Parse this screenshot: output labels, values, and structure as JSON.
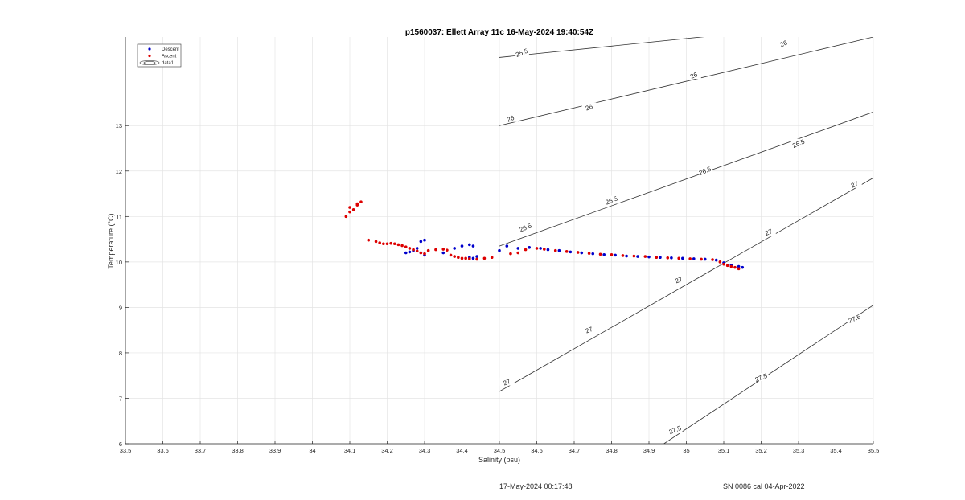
{
  "chart_data": {
    "type": "scatter",
    "title": "p1560037: Ellett Array 11c 16-May-2024 19:40:54Z",
    "xlabel": "Salinity (psu)",
    "ylabel": "Temperature (°C)",
    "xlim": [
      33.5,
      35.5
    ],
    "ylim": [
      6,
      14.95
    ],
    "xticks": [
      "33.5",
      "33.6",
      "33.7",
      "33.8",
      "33.9",
      "34",
      "34.1",
      "34.2",
      "34.3",
      "34.4",
      "34.5",
      "34.6",
      "34.7",
      "34.8",
      "34.9",
      "35",
      "35.1",
      "35.2",
      "35.3",
      "35.4",
      "35.5"
    ],
    "yticks": [
      "6",
      "7",
      "8",
      "9",
      "10",
      "11",
      "12",
      "13"
    ],
    "grid": true,
    "legend_position": "top-left",
    "series": [
      {
        "name": "Descent",
        "color": "#0000cc",
        "points": [
          [
            34.25,
            10.2
          ],
          [
            34.26,
            10.22
          ],
          [
            34.27,
            10.25
          ],
          [
            34.28,
            10.3
          ],
          [
            34.29,
            10.45
          ],
          [
            34.3,
            10.48
          ],
          [
            34.29,
            10.2
          ],
          [
            34.3,
            10.15
          ],
          [
            34.35,
            10.2
          ],
          [
            34.38,
            10.3
          ],
          [
            34.4,
            10.35
          ],
          [
            34.42,
            10.38
          ],
          [
            34.43,
            10.35
          ],
          [
            34.42,
            10.1
          ],
          [
            34.43,
            10.08
          ],
          [
            34.44,
            10.12
          ],
          [
            34.5,
            10.25
          ],
          [
            34.52,
            10.35
          ],
          [
            34.55,
            10.3
          ],
          [
            34.58,
            10.32
          ],
          [
            34.61,
            10.3
          ],
          [
            34.63,
            10.27
          ],
          [
            34.66,
            10.25
          ],
          [
            34.69,
            10.22
          ],
          [
            34.72,
            10.2
          ],
          [
            34.75,
            10.18
          ],
          [
            34.78,
            10.16
          ],
          [
            34.81,
            10.15
          ],
          [
            34.84,
            10.13
          ],
          [
            34.87,
            10.12
          ],
          [
            34.9,
            10.11
          ],
          [
            34.93,
            10.1
          ],
          [
            34.96,
            10.09
          ],
          [
            34.99,
            10.08
          ],
          [
            35.02,
            10.07
          ],
          [
            35.05,
            10.06
          ],
          [
            35.08,
            10.04
          ],
          [
            35.1,
            9.98
          ],
          [
            35.12,
            9.93
          ],
          [
            35.14,
            9.9
          ],
          [
            35.15,
            9.88
          ]
        ]
      },
      {
        "name": "Ascent",
        "color": "#dd0000",
        "points": [
          [
            34.09,
            11.0
          ],
          [
            34.1,
            11.1
          ],
          [
            34.1,
            11.2
          ],
          [
            34.11,
            11.15
          ],
          [
            34.12,
            11.25
          ],
          [
            34.12,
            11.28
          ],
          [
            34.13,
            11.32
          ],
          [
            34.15,
            10.48
          ],
          [
            34.17,
            10.45
          ],
          [
            34.18,
            10.42
          ],
          [
            34.19,
            10.4
          ],
          [
            34.2,
            10.4
          ],
          [
            34.21,
            10.41
          ],
          [
            34.22,
            10.4
          ],
          [
            34.23,
            10.38
          ],
          [
            34.24,
            10.36
          ],
          [
            34.25,
            10.33
          ],
          [
            34.26,
            10.3
          ],
          [
            34.27,
            10.27
          ],
          [
            34.28,
            10.24
          ],
          [
            34.29,
            10.2
          ],
          [
            34.3,
            10.18
          ],
          [
            34.31,
            10.25
          ],
          [
            34.33,
            10.27
          ],
          [
            34.35,
            10.28
          ],
          [
            34.36,
            10.26
          ],
          [
            34.37,
            10.15
          ],
          [
            34.38,
            10.12
          ],
          [
            34.39,
            10.1
          ],
          [
            34.4,
            10.08
          ],
          [
            34.41,
            10.08
          ],
          [
            34.42,
            10.07
          ],
          [
            34.44,
            10.06
          ],
          [
            34.46,
            10.08
          ],
          [
            34.48,
            10.1
          ],
          [
            34.53,
            10.18
          ],
          [
            34.55,
            10.2
          ],
          [
            34.57,
            10.27
          ],
          [
            34.6,
            10.3
          ],
          [
            34.62,
            10.28
          ],
          [
            34.65,
            10.25
          ],
          [
            34.68,
            10.23
          ],
          [
            34.71,
            10.21
          ],
          [
            34.74,
            10.19
          ],
          [
            34.77,
            10.17
          ],
          [
            34.8,
            10.16
          ],
          [
            34.83,
            10.14
          ],
          [
            34.86,
            10.13
          ],
          [
            34.89,
            10.12
          ],
          [
            34.92,
            10.1
          ],
          [
            34.95,
            10.09
          ],
          [
            34.98,
            10.08
          ],
          [
            35.01,
            10.07
          ],
          [
            35.04,
            10.06
          ],
          [
            35.07,
            10.05
          ],
          [
            35.09,
            10.0
          ],
          [
            35.1,
            9.95
          ],
          [
            35.11,
            9.92
          ],
          [
            35.12,
            9.9
          ],
          [
            35.13,
            9.88
          ],
          [
            35.14,
            9.85
          ]
        ]
      }
    ],
    "contour_legend_label": "data1",
    "contours": [
      {
        "label": "25.5",
        "from": [
          34.5,
          14.5
        ],
        "to": [
          35.1,
          15.0
        ]
      },
      {
        "label": "26",
        "from": [
          34.5,
          13.0
        ],
        "to": [
          35.5,
          14.95
        ]
      },
      {
        "label": "26.5",
        "from": [
          34.5,
          10.35
        ],
        "to": [
          35.5,
          13.3
        ]
      },
      {
        "label": "27",
        "from": [
          34.5,
          7.15
        ],
        "to": [
          35.5,
          11.85
        ]
      },
      {
        "label": "27.5",
        "from": [
          34.94,
          6.0
        ],
        "to": [
          35.5,
          9.05
        ]
      }
    ],
    "contour_labels": [
      {
        "text": "25.5",
        "at": [
          34.56,
          14.6
        ]
      },
      {
        "text": "26",
        "at": [
          35.26,
          14.8
        ]
      },
      {
        "text": "26",
        "at": [
          35.02,
          14.1
        ]
      },
      {
        "text": "26",
        "at": [
          34.74,
          13.4
        ]
      },
      {
        "text": "26",
        "at": [
          34.53,
          13.15
        ]
      },
      {
        "text": "26.5",
        "at": [
          35.3,
          12.6
        ]
      },
      {
        "text": "26.5",
        "at": [
          35.05,
          12.0
        ]
      },
      {
        "text": "26.5",
        "at": [
          34.8,
          11.35
        ]
      },
      {
        "text": "26.5",
        "at": [
          34.57,
          10.75
        ]
      },
      {
        "text": "27",
        "at": [
          35.45,
          11.7
        ]
      },
      {
        "text": "27",
        "at": [
          35.22,
          10.65
        ]
      },
      {
        "text": "27",
        "at": [
          34.98,
          9.6
        ]
      },
      {
        "text": "27",
        "at": [
          34.74,
          8.5
        ]
      },
      {
        "text": "27",
        "at": [
          34.52,
          7.35
        ]
      },
      {
        "text": "27.5",
        "at": [
          35.45,
          8.75
        ]
      },
      {
        "text": "27.5",
        "at": [
          35.2,
          7.45
        ]
      },
      {
        "text": "27.5",
        "at": [
          34.97,
          6.3
        ]
      }
    ]
  },
  "footer": {
    "timestamp": "17-May-2024 00:17:48",
    "calibration": "SN 0086 cal 04-Apr-2022"
  }
}
